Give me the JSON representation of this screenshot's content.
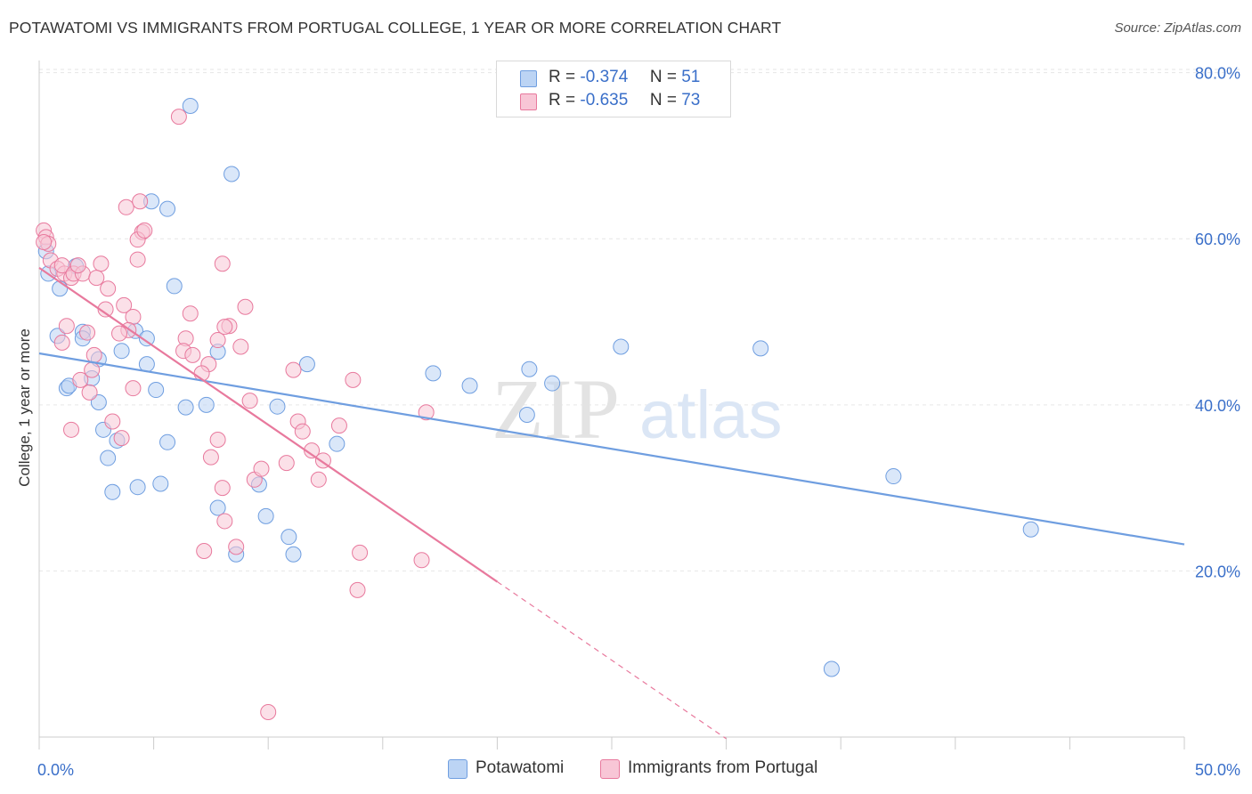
{
  "title": "POTAWATOMI VS IMMIGRANTS FROM PORTUGAL COLLEGE, 1 YEAR OR MORE CORRELATION CHART",
  "source": "Source: ZipAtlas.com",
  "watermark": {
    "zip": "ZIP",
    "atlas": "atlas"
  },
  "legend": {
    "rows": [
      {
        "r_label": "R =",
        "r_value": "-0.374",
        "n_label": "N =",
        "n_value": "51",
        "color": "#a8c8f0"
      },
      {
        "r_label": "R =",
        "r_value": "-0.635",
        "n_label": "N =",
        "n_value": "73",
        "color": "#f5b8cc"
      }
    ]
  },
  "bottom_legend": [
    {
      "label": "Potawatomi",
      "color": "#bcd4f4"
    },
    {
      "label": "Immigrants from Portugal",
      "color": "#f8c6d6"
    }
  ],
  "chart_data": {
    "type": "scatter",
    "title": "POTAWATOMI VS IMMIGRANTS FROM PORTUGAL COLLEGE, 1 YEAR OR MORE CORRELATION CHART",
    "xlabel": "",
    "ylabel": "College, 1 year or more",
    "xlim": [
      0,
      50
    ],
    "ylim": [
      0,
      82
    ],
    "x_tick_labels": [
      "0.0%",
      "50.0%"
    ],
    "y_ticks": [
      20,
      40,
      60,
      80
    ],
    "y_tick_labels": [
      "20.0%",
      "40.0%",
      "60.0%",
      "80.0%"
    ],
    "grid": true,
    "legend_position": "top-center",
    "series": [
      {
        "name": "Potawatomi",
        "color": "#6f9ee0",
        "fill": "#bcd4f4",
        "points": [
          [
            0.3,
            58.5
          ],
          [
            0.4,
            55.8
          ],
          [
            0.9,
            54
          ],
          [
            0.8,
            48.3
          ],
          [
            1.9,
            48.8
          ],
          [
            1.9,
            48
          ],
          [
            1.2,
            42
          ],
          [
            1.3,
            42.3
          ],
          [
            2.3,
            43.2
          ],
          [
            2.6,
            40.3
          ],
          [
            2.8,
            37
          ],
          [
            3.0,
            33.6
          ],
          [
            3.4,
            35.7
          ],
          [
            3.6,
            46.5
          ],
          [
            4.2,
            48.9
          ],
          [
            4.7,
            48
          ],
          [
            4.7,
            44.9
          ],
          [
            5.1,
            41.8
          ],
          [
            4.3,
            30.1
          ],
          [
            3.2,
            29.5
          ],
          [
            5.3,
            30.5
          ],
          [
            5.6,
            35.5
          ],
          [
            5.6,
            63.6
          ],
          [
            4.9,
            64.5
          ],
          [
            5.9,
            54.3
          ],
          [
            6.4,
            39.7
          ],
          [
            6.6,
            76
          ],
          [
            7.3,
            40
          ],
          [
            7.8,
            46.4
          ],
          [
            8.4,
            67.8
          ],
          [
            7.8,
            27.6
          ],
          [
            8.6,
            22
          ],
          [
            9.6,
            30.4
          ],
          [
            9.9,
            26.6
          ],
          [
            10.4,
            39.8
          ],
          [
            10.9,
            24.1
          ],
          [
            11.1,
            22
          ],
          [
            11.7,
            44.9
          ],
          [
            13.0,
            35.3
          ],
          [
            17.2,
            43.8
          ],
          [
            18.8,
            42.3
          ],
          [
            21.3,
            38.8
          ],
          [
            21.4,
            44.3
          ],
          [
            22.4,
            42.6
          ],
          [
            25.4,
            47
          ],
          [
            31.5,
            46.8
          ],
          [
            34.6,
            8.2
          ],
          [
            37.3,
            31.4
          ],
          [
            43.3,
            25
          ],
          [
            1.6,
            56.7
          ],
          [
            2.6,
            45.5
          ]
        ],
        "trend": {
          "x0": 0,
          "y0": 46.2,
          "x1": 50,
          "y1": 23.2
        }
      },
      {
        "name": "Immigrants from Portugal",
        "color": "#e8799d",
        "fill": "#f8c6d6",
        "points": [
          [
            0.2,
            61
          ],
          [
            0.3,
            60.2
          ],
          [
            0.4,
            59.4
          ],
          [
            0.2,
            59.6
          ],
          [
            0.5,
            57.4
          ],
          [
            0.8,
            56.4
          ],
          [
            1.1,
            55.8
          ],
          [
            1.0,
            56.8
          ],
          [
            1.4,
            55.3
          ],
          [
            1.5,
            55.8
          ],
          [
            1.9,
            55.8
          ],
          [
            1.7,
            56.8
          ],
          [
            2.7,
            57
          ],
          [
            2.5,
            55.3
          ],
          [
            3.0,
            54
          ],
          [
            2.9,
            51.5
          ],
          [
            3.7,
            52
          ],
          [
            4.1,
            50.6
          ],
          [
            3.9,
            49
          ],
          [
            3.5,
            48.6
          ],
          [
            1.0,
            47.5
          ],
          [
            1.2,
            49.5
          ],
          [
            2.1,
            48.7
          ],
          [
            2.3,
            44.2
          ],
          [
            2.4,
            46
          ],
          [
            1.8,
            43
          ],
          [
            2.2,
            41.5
          ],
          [
            1.4,
            37
          ],
          [
            3.2,
            38
          ],
          [
            3.6,
            36
          ],
          [
            4.1,
            42
          ],
          [
            4.3,
            57.5
          ],
          [
            4.5,
            60.8
          ],
          [
            4.3,
            59.9
          ],
          [
            4.6,
            61
          ],
          [
            3.8,
            63.8
          ],
          [
            4.4,
            64.5
          ],
          [
            6.1,
            74.7
          ],
          [
            6.6,
            51
          ],
          [
            6.4,
            48
          ],
          [
            6.3,
            46.5
          ],
          [
            6.7,
            46
          ],
          [
            7.4,
            44.9
          ],
          [
            7.1,
            43.8
          ],
          [
            7.8,
            47.8
          ],
          [
            8.3,
            49.5
          ],
          [
            8.1,
            49.4
          ],
          [
            8.8,
            47
          ],
          [
            9.0,
            51.8
          ],
          [
            8.0,
            57
          ],
          [
            7.5,
            33.7
          ],
          [
            7.8,
            35.8
          ],
          [
            8.0,
            30
          ],
          [
            8.1,
            26
          ],
          [
            7.2,
            22.4
          ],
          [
            8.6,
            22.9
          ],
          [
            9.4,
            31
          ],
          [
            9.2,
            40.5
          ],
          [
            9.7,
            32.3
          ],
          [
            10.8,
            33
          ],
          [
            11.1,
            44.2
          ],
          [
            11.3,
            38
          ],
          [
            11.5,
            36.8
          ],
          [
            11.9,
            34.5
          ],
          [
            12.2,
            31
          ],
          [
            12.4,
            33.3
          ],
          [
            13.1,
            37.5
          ],
          [
            13.7,
            43
          ],
          [
            14.0,
            22.2
          ],
          [
            13.9,
            17.7
          ],
          [
            16.7,
            21.3
          ],
          [
            16.9,
            39.1
          ],
          [
            10.0,
            3
          ]
        ],
        "trend": {
          "x0": 0,
          "y0": 56.5,
          "x1": 20,
          "y1": 18.7
        },
        "trend_extension": {
          "x0": 20,
          "y0": 18.7,
          "x1": 30,
          "y1": -0.2
        }
      }
    ]
  }
}
